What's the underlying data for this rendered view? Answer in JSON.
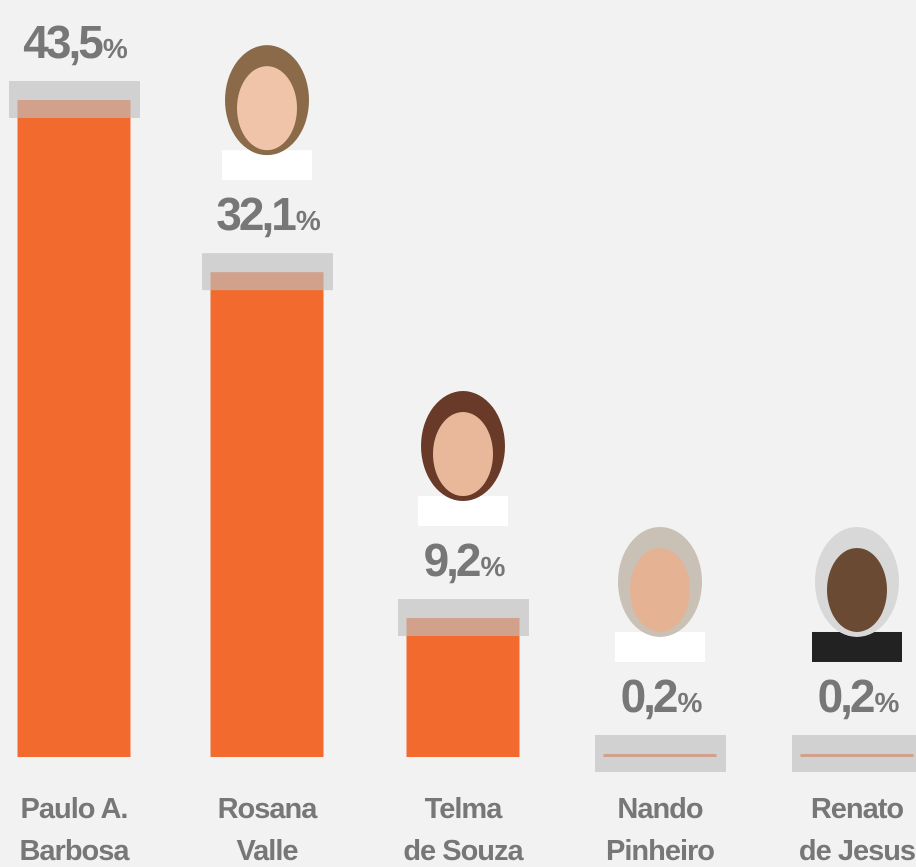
{
  "chart_data": {
    "type": "bar",
    "categories": [
      [
        "Paulo A.",
        "Barbosa"
      ],
      [
        "Rosana",
        "Valle"
      ],
      [
        "Telma",
        "de Souza"
      ],
      [
        "Nando",
        "Pinheiro"
      ],
      [
        "Renato",
        "de Jesus"
      ]
    ],
    "values": [
      43.5,
      32.1,
      9.2,
      0.2,
      0.2
    ],
    "value_labels": [
      "43,5%",
      "32,1%",
      "9,2%",
      "0,2%",
      "0,2%"
    ],
    "color": "#f26a2e"
  }
}
